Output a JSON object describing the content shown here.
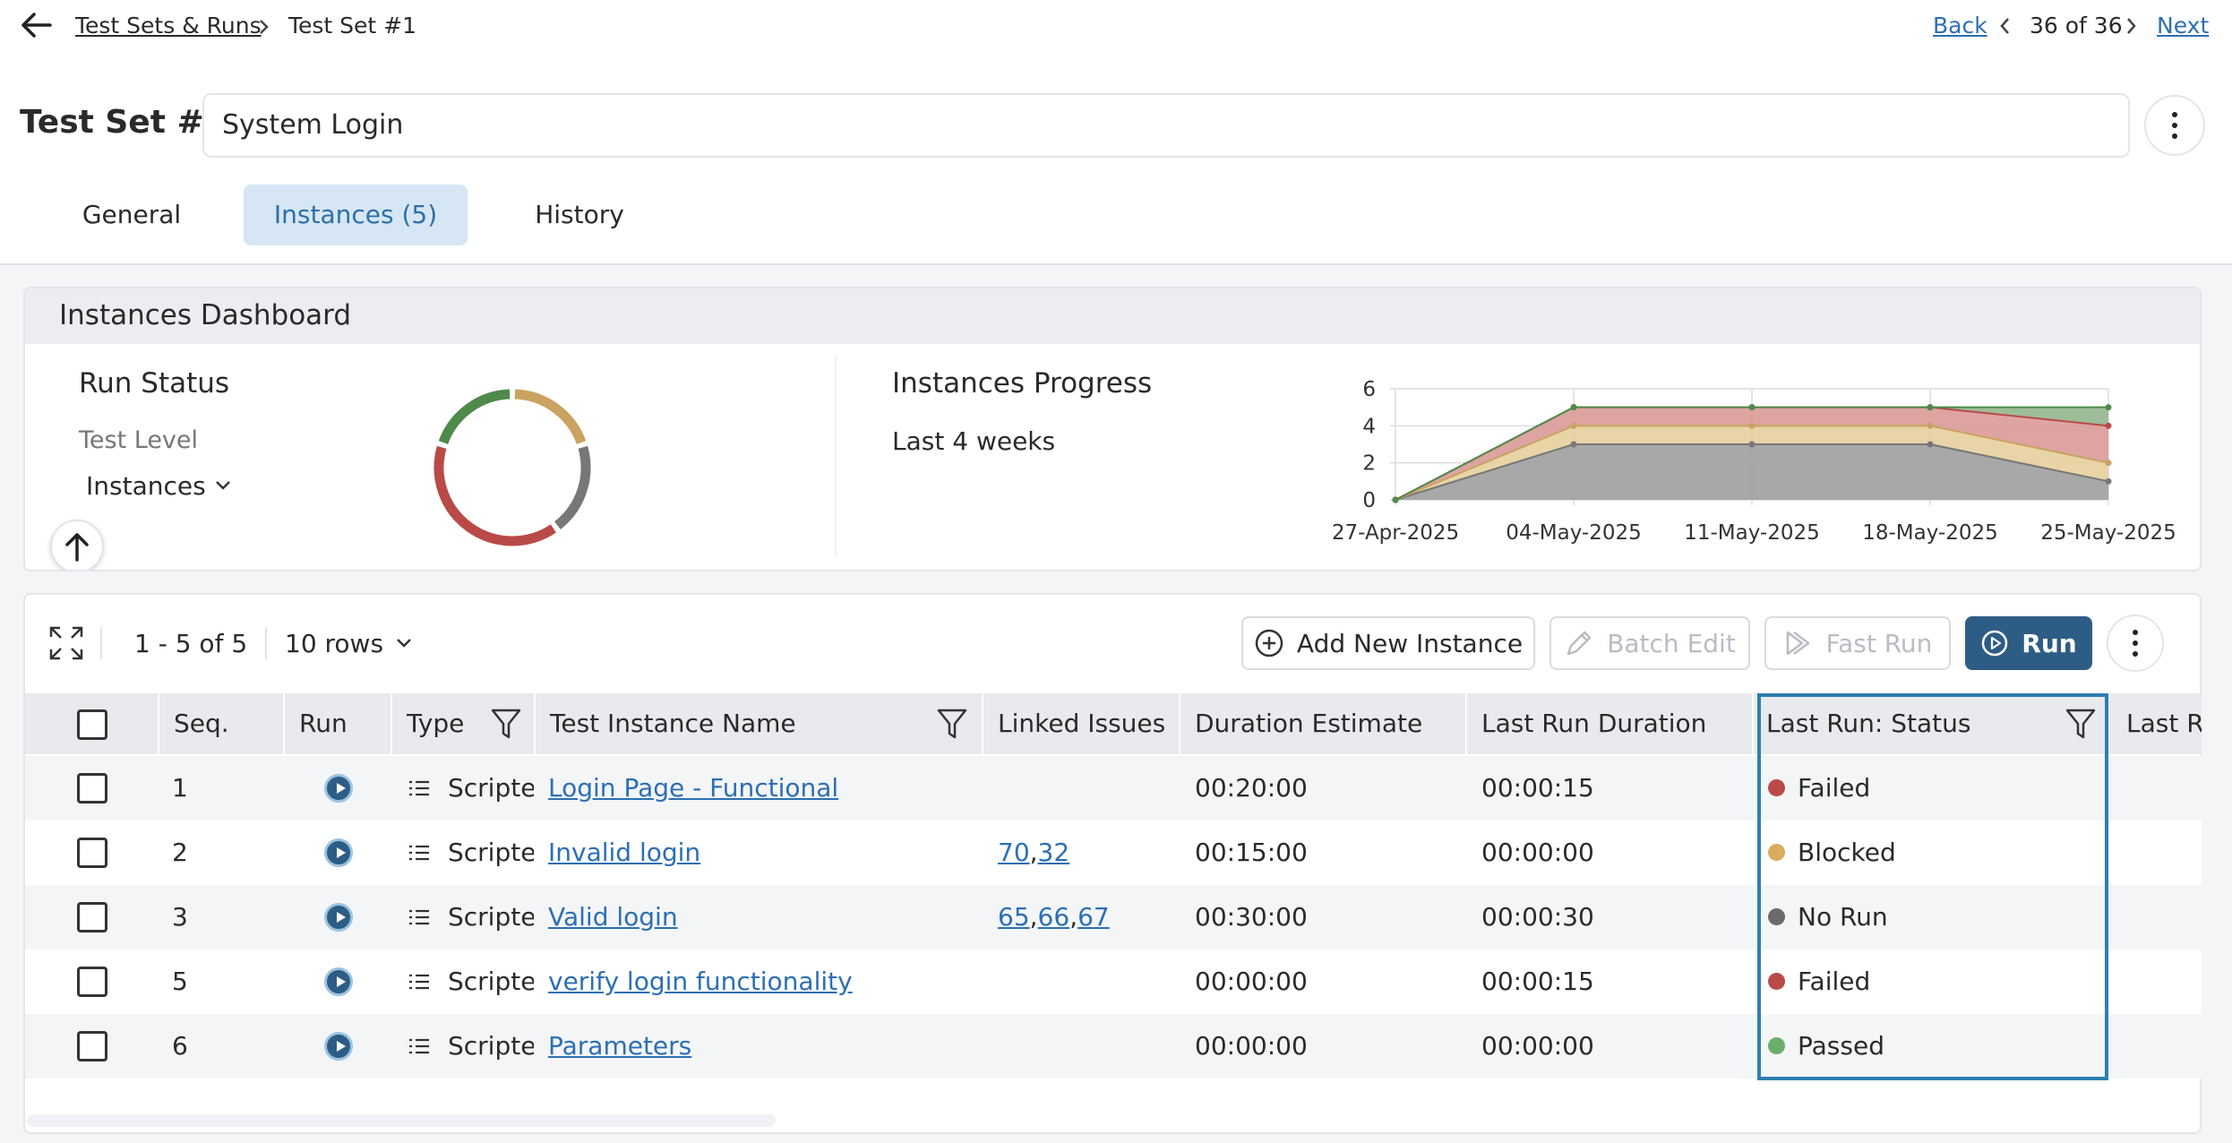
{
  "breadcrumb": {
    "parent": "Test Sets & Runs",
    "current": "Test Set #1"
  },
  "pager": {
    "back": "Back",
    "position": "36 of 36",
    "next": "Next"
  },
  "header": {
    "title": "Test Set #1",
    "name_value": "System Login"
  },
  "tabs": [
    {
      "label": "General",
      "active": false
    },
    {
      "label": "Instances (5)",
      "active": true
    },
    {
      "label": "History",
      "active": false
    }
  ],
  "dashboard": {
    "title": "Instances Dashboard",
    "run_status": {
      "title": "Run Status",
      "level_label": "Test Level",
      "level_value": "Instances",
      "donut": [
        {
          "status": "Failed",
          "value": 2,
          "color": "#b94a48"
        },
        {
          "status": "Blocked",
          "value": 1,
          "color": "#c9a35f"
        },
        {
          "status": "No Run",
          "value": 1,
          "color": "#777777"
        },
        {
          "status": "Passed",
          "value": 1,
          "color": "#4e8a4a"
        }
      ]
    },
    "progress": {
      "title": "Instances Progress",
      "subtitle": "Last 4 weeks"
    }
  },
  "chart_data": {
    "type": "area",
    "stacked": true,
    "x": [
      "27-Apr-2025",
      "04-May-2025",
      "11-May-2025",
      "18-May-2025",
      "25-May-2025"
    ],
    "series": [
      {
        "values": [
          0,
          3,
          3,
          3,
          1
        ],
        "color": "#9e9e9e"
      },
      {
        "values": [
          0,
          1,
          1,
          1,
          1
        ],
        "color": "#e6cf9c"
      },
      {
        "values": [
          0,
          1,
          1,
          1,
          2
        ],
        "color": "#d99a98"
      },
      {
        "values": [
          0,
          0,
          0,
          0,
          1
        ],
        "color": "#93b58f"
      }
    ],
    "yticks": [
      "0",
      "2",
      "4",
      "6"
    ],
    "ylim": [
      0,
      6
    ],
    "grid": true,
    "legend": "none"
  },
  "toolbar": {
    "range": "1 - 5 of 5",
    "rows": "10 rows",
    "add": "Add New Instance",
    "batch": "Batch Edit",
    "fast": "Fast Run",
    "run": "Run"
  },
  "columns": {
    "seq": "Seq.",
    "run": "Run",
    "type": "Type",
    "name": "Test Instance Name",
    "issues": "Linked Issues",
    "estimate": "Duration Estimate",
    "lastdur": "Last Run Duration",
    "status": "Last Run: Status",
    "last": "Last R"
  },
  "rows": [
    {
      "seq": "1",
      "type": "Scripted",
      "name": "Login Page - Functional",
      "issues": [],
      "estimate": "00:20:00",
      "lastdur": "00:00:15",
      "status": "Failed",
      "color": "#b94a48"
    },
    {
      "seq": "2",
      "type": "Scripted",
      "name": "Invalid login",
      "issues": [
        "70",
        "32"
      ],
      "estimate": "00:15:00",
      "lastdur": "00:00:00",
      "status": "Blocked",
      "color": "#d9ac5e"
    },
    {
      "seq": "3",
      "type": "Scripted",
      "name": "Valid login",
      "issues": [
        "65",
        "66",
        "67"
      ],
      "estimate": "00:30:00",
      "lastdur": "00:00:30",
      "status": "No Run",
      "color": "#6b6b6b"
    },
    {
      "seq": "5",
      "type": "Scripted",
      "name": "verify login functionality",
      "issues": [],
      "estimate": "00:00:00",
      "lastdur": "00:00:15",
      "status": "Failed",
      "color": "#b94a48"
    },
    {
      "seq": "6",
      "type": "Scripted",
      "name": "Parameters",
      "issues": [],
      "estimate": "00:00:00",
      "lastdur": "00:00:00",
      "status": "Passed",
      "color": "#6aae6a"
    }
  ]
}
